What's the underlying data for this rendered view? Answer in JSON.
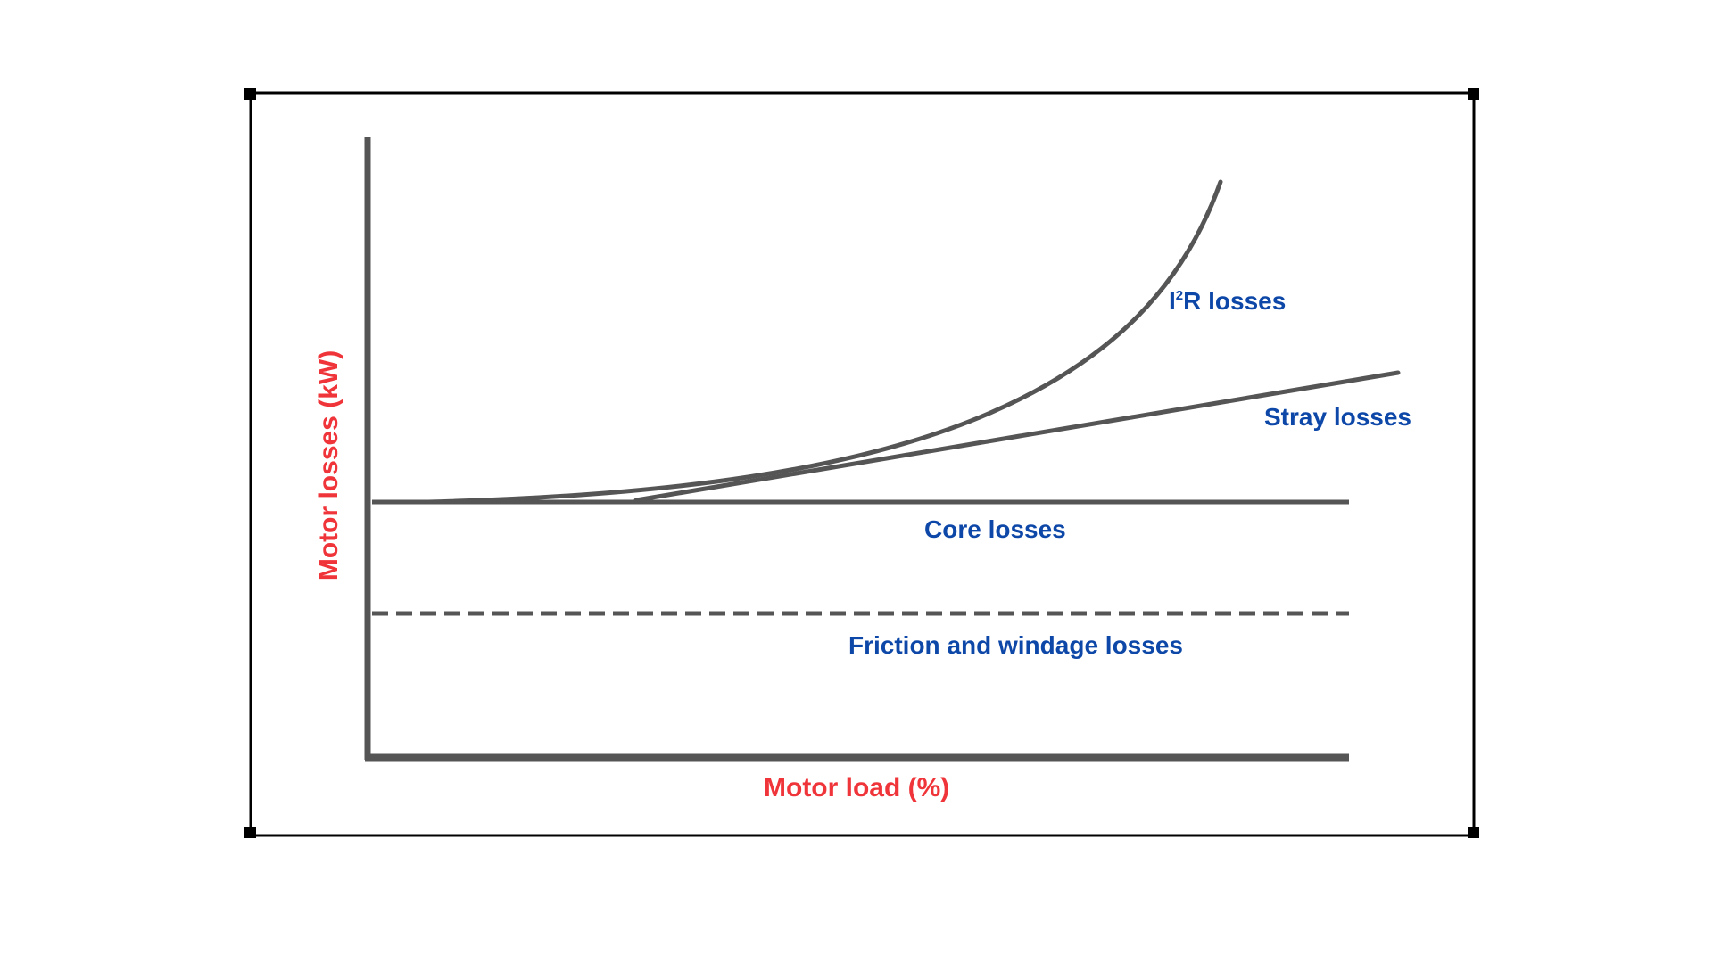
{
  "axes": {
    "x_label": "Motor load (%)",
    "y_label": "Motor losses (kW)"
  },
  "curves": [
    {
      "key": "i2r",
      "label_prefix": "I",
      "label_sup": "2",
      "label_suffix": "R losses",
      "shape": "exponential rising"
    },
    {
      "key": "stray",
      "label": "Stray losses",
      "shape": "linear rising"
    },
    {
      "key": "core",
      "label": "Core losses",
      "shape": "constant"
    },
    {
      "key": "friction",
      "label": "Friction and windage losses",
      "shape": "constant dashed"
    }
  ],
  "colors": {
    "axis_label": "#f0353a",
    "curve_label": "#0d47a8",
    "line": "#555555",
    "frame": "#000000"
  }
}
